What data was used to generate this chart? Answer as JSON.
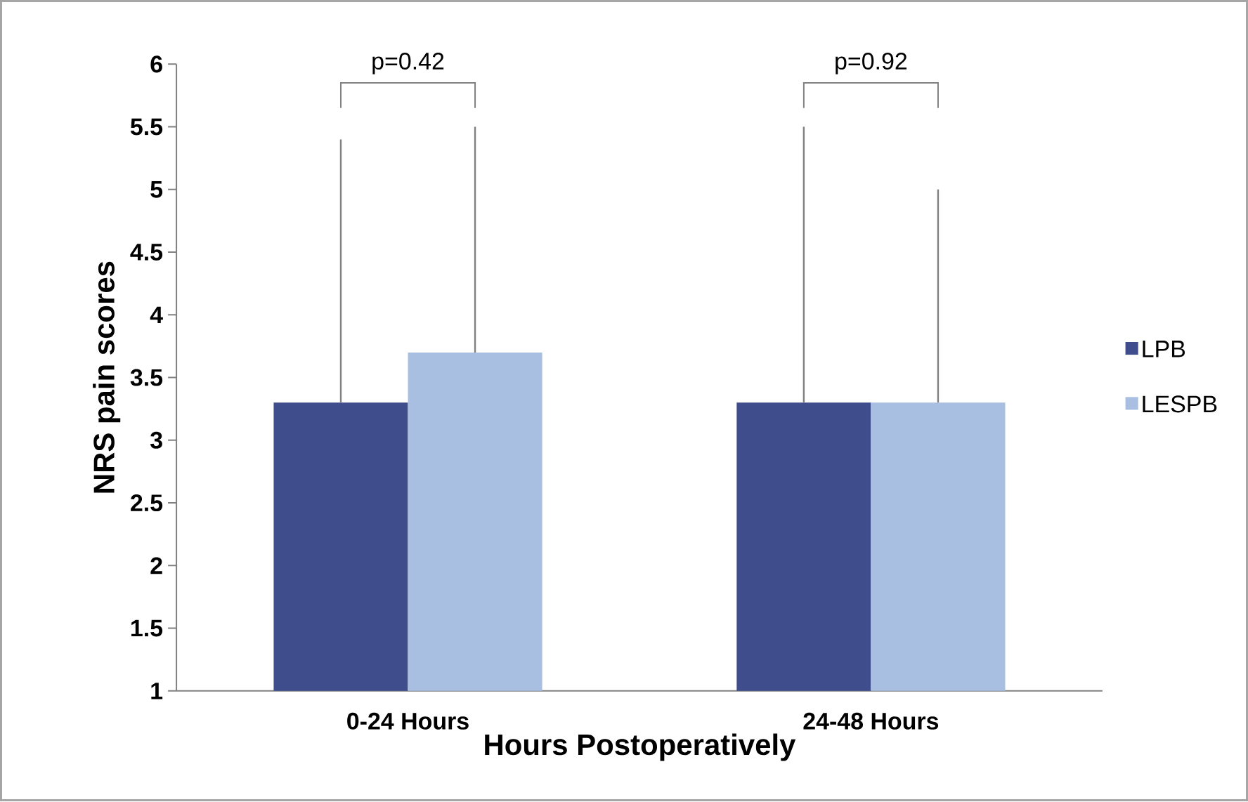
{
  "chart_data": {
    "type": "bar",
    "xlabel": "Hours Postoperatively",
    "ylabel": "NRS pain scores",
    "categories": [
      "0-24 Hours",
      "24-48 Hours"
    ],
    "series": [
      {
        "name": "LPB",
        "color": "#3f4d8c",
        "values": [
          3.3,
          3.3
        ],
        "errors": [
          [
            3.3,
            5.4
          ],
          [
            3.3,
            5.5
          ]
        ]
      },
      {
        "name": "LESPB",
        "color": "#a9bfe2",
        "values": [
          3.7,
          3.3
        ],
        "errors": [
          [
            3.7,
            5.5
          ],
          [
            3.3,
            5.0
          ]
        ]
      }
    ],
    "ylim": [
      1,
      6
    ],
    "yticks": [
      1,
      1.5,
      2,
      2.5,
      3,
      3.5,
      4,
      4.5,
      5,
      5.5,
      6
    ],
    "legend": "right",
    "grid": false,
    "annotations": [
      "p=0.42",
      "p=0.92"
    ]
  }
}
